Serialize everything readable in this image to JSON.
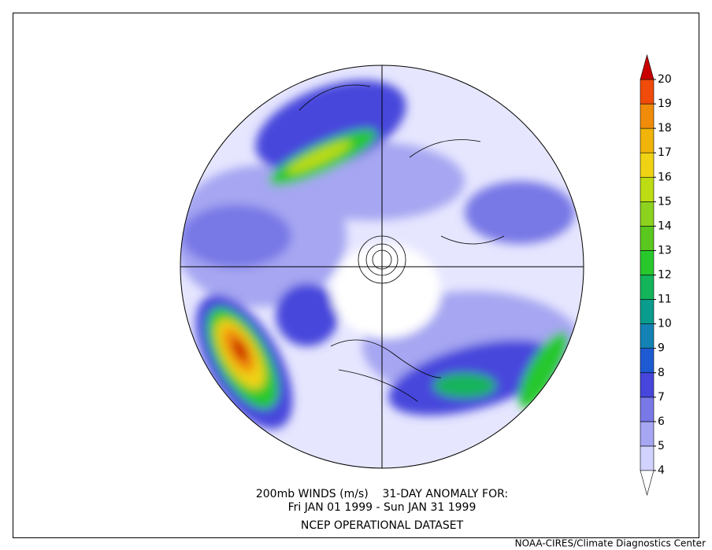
{
  "header": {
    "title_line1": "200mb WINDS (m/s)    31-DAY ANOMALY FOR:",
    "title_line2": "Fri JAN 01 1999 - Sun JAN 31 1999",
    "title_line3": "NCEP OPERATIONAL DATASET"
  },
  "credit": "NOAA-CIRES/Climate Diagnostics Center",
  "colorbar": {
    "ticks": [
      4,
      5,
      6,
      7,
      8,
      9,
      10,
      11,
      12,
      13,
      14,
      15,
      16,
      17,
      18,
      19,
      20
    ],
    "colors": [
      "#d2d2ff",
      "#a6a6f2",
      "#7878e6",
      "#4646dc",
      "#1e5ad2",
      "#1482b4",
      "#0a9c8c",
      "#14b45a",
      "#28c82d",
      "#5ac81e",
      "#8cd21e",
      "#bedc14",
      "#f0d214",
      "#f0b40a",
      "#f08c0a",
      "#f04b0a"
    ],
    "under_color": "#ffffff",
    "over_color": "#c80000"
  }
}
